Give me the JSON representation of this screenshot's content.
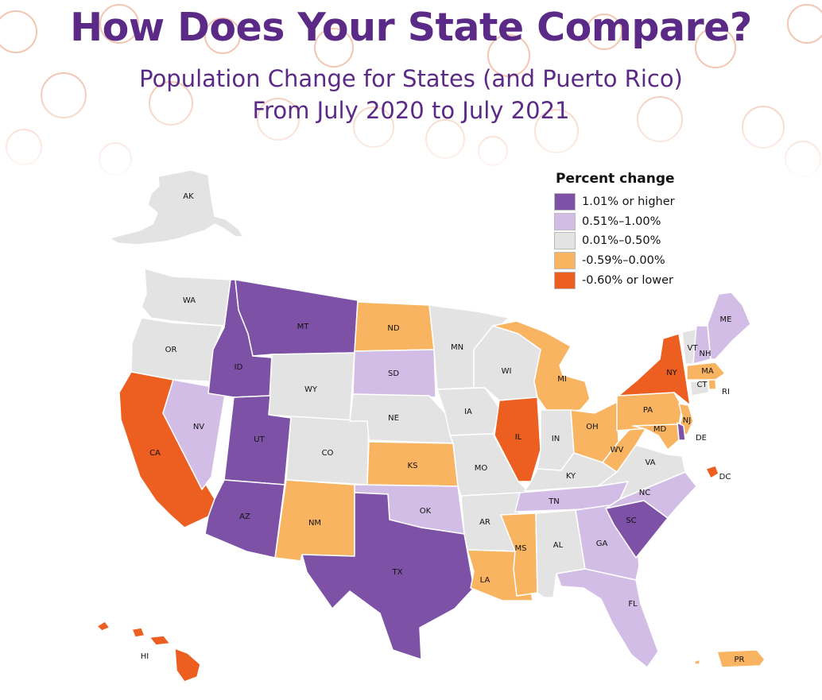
{
  "title": "How Does Your State Compare?",
  "subtitle_line1": "Population Change for States (and Puerto Rico)",
  "subtitle_line2": "From July 2020 to July 2021",
  "legend": {
    "title": "Percent change",
    "items": [
      {
        "key": "c1",
        "label": "1.01% or higher",
        "color": "#7d52a6"
      },
      {
        "key": "c2",
        "label": "0.51%–1.00%",
        "color": "#d2bde6"
      },
      {
        "key": "c3",
        "label": "0.01%–0.50%",
        "color": "#e3e3e3"
      },
      {
        "key": "c4",
        "label": "-0.59%–0.00%",
        "color": "#f8b460"
      },
      {
        "key": "c5",
        "label": "-0.60% or lower",
        "color": "#ec5f21"
      }
    ]
  },
  "states": [
    {
      "abbr": "AK",
      "class": "c3"
    },
    {
      "abbr": "WA",
      "class": "c3"
    },
    {
      "abbr": "OR",
      "class": "c3"
    },
    {
      "abbr": "CA",
      "class": "c5"
    },
    {
      "abbr": "NV",
      "class": "c2"
    },
    {
      "abbr": "ID",
      "class": "c1"
    },
    {
      "abbr": "MT",
      "class": "c1"
    },
    {
      "abbr": "WY",
      "class": "c3"
    },
    {
      "abbr": "UT",
      "class": "c1"
    },
    {
      "abbr": "AZ",
      "class": "c1"
    },
    {
      "abbr": "CO",
      "class": "c3"
    },
    {
      "abbr": "NM",
      "class": "c4"
    },
    {
      "abbr": "ND",
      "class": "c4"
    },
    {
      "abbr": "SD",
      "class": "c2"
    },
    {
      "abbr": "NE",
      "class": "c3"
    },
    {
      "abbr": "KS",
      "class": "c4"
    },
    {
      "abbr": "OK",
      "class": "c2"
    },
    {
      "abbr": "TX",
      "class": "c1"
    },
    {
      "abbr": "MN",
      "class": "c3"
    },
    {
      "abbr": "IA",
      "class": "c3"
    },
    {
      "abbr": "MO",
      "class": "c3"
    },
    {
      "abbr": "AR",
      "class": "c3"
    },
    {
      "abbr": "LA",
      "class": "c4"
    },
    {
      "abbr": "WI",
      "class": "c3"
    },
    {
      "abbr": "IL",
      "class": "c5"
    },
    {
      "abbr": "MI",
      "class": "c4"
    },
    {
      "abbr": "IN",
      "class": "c3"
    },
    {
      "abbr": "OH",
      "class": "c4"
    },
    {
      "abbr": "KY",
      "class": "c3"
    },
    {
      "abbr": "TN",
      "class": "c2"
    },
    {
      "abbr": "MS",
      "class": "c4"
    },
    {
      "abbr": "AL",
      "class": "c3"
    },
    {
      "abbr": "GA",
      "class": "c2"
    },
    {
      "abbr": "FL",
      "class": "c2"
    },
    {
      "abbr": "SC",
      "class": "c1"
    },
    {
      "abbr": "NC",
      "class": "c2"
    },
    {
      "abbr": "VA",
      "class": "c3"
    },
    {
      "abbr": "WV",
      "class": "c4"
    },
    {
      "abbr": "PA",
      "class": "c4"
    },
    {
      "abbr": "NY",
      "class": "c5"
    },
    {
      "abbr": "VT",
      "class": "c3"
    },
    {
      "abbr": "NH",
      "class": "c2"
    },
    {
      "abbr": "ME",
      "class": "c2"
    },
    {
      "abbr": "MA",
      "class": "c4"
    },
    {
      "abbr": "CT",
      "class": "c3"
    },
    {
      "abbr": "RI",
      "class": "c4"
    },
    {
      "abbr": "NJ",
      "class": "c4"
    },
    {
      "abbr": "DE",
      "class": "c1"
    },
    {
      "abbr": "MD",
      "class": "c4"
    },
    {
      "abbr": "DC",
      "class": "c5"
    },
    {
      "abbr": "HI",
      "class": "c5"
    },
    {
      "abbr": "PR",
      "class": "c4"
    }
  ]
}
